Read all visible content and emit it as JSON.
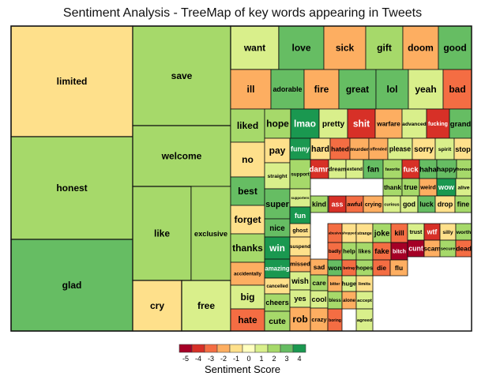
{
  "chart_data": {
    "type": "treemap",
    "title": "Sentiment Analysis - TreeMap of key words appearing in Tweets",
    "legend_title": "Sentiment Score",
    "legend_ticks": [
      "-5",
      "-4",
      "-3",
      "-2",
      "-1",
      "0",
      "1",
      "2",
      "3",
      "4"
    ],
    "palette": [
      "#a50026",
      "#d73027",
      "#f46d43",
      "#fdae61",
      "#fee08b",
      "#ffffbf",
      "#d9ef8b",
      "#a6d96a",
      "#66bd63",
      "#1a9850"
    ],
    "words": [
      {
        "word": "limited",
        "score": -1
      },
      {
        "word": "honest",
        "score": 2
      },
      {
        "word": "glad",
        "score": 3
      },
      {
        "word": "save",
        "score": 2
      },
      {
        "word": "welcome",
        "score": 2
      },
      {
        "word": "like",
        "score": 2
      },
      {
        "word": "exclusive",
        "score": 2
      },
      {
        "word": "cry",
        "score": -1
      },
      {
        "word": "free",
        "score": 1
      },
      {
        "word": "want",
        "score": 1
      },
      {
        "word": "love",
        "score": 3
      },
      {
        "word": "sick",
        "score": -2
      },
      {
        "word": "gift",
        "score": 2
      },
      {
        "word": "doom",
        "score": -2
      },
      {
        "word": "good",
        "score": 3
      },
      {
        "word": "ill",
        "score": -2
      },
      {
        "word": "adorable",
        "score": 3
      },
      {
        "word": "fire",
        "score": -2
      },
      {
        "word": "great",
        "score": 3
      },
      {
        "word": "lol",
        "score": 3
      },
      {
        "word": "yeah",
        "score": 1
      },
      {
        "word": "bad",
        "score": -3
      },
      {
        "word": "liked",
        "score": 2
      },
      {
        "word": "hope",
        "score": 2
      },
      {
        "word": "lmao",
        "score": 4
      },
      {
        "word": "pretty",
        "score": 1
      },
      {
        "word": "shit",
        "score": -4
      },
      {
        "word": "warfare",
        "score": -2
      },
      {
        "word": "advanced",
        "score": 1
      },
      {
        "word": "fucking",
        "score": -4
      },
      {
        "word": "grand",
        "score": 3
      },
      {
        "word": "no",
        "score": -1
      },
      {
        "word": "best",
        "score": 3
      },
      {
        "word": "forget",
        "score": -1
      },
      {
        "word": "thanks",
        "score": 2
      },
      {
        "word": "accidentally",
        "score": -2
      },
      {
        "word": "big",
        "score": 1
      },
      {
        "word": "hate",
        "score": -3
      },
      {
        "word": "pay",
        "score": -1
      },
      {
        "word": "straight",
        "score": 1
      },
      {
        "word": "super",
        "score": 3
      },
      {
        "word": "nice",
        "score": 3
      },
      {
        "word": "win",
        "score": 4
      },
      {
        "word": "amazing",
        "score": 4
      },
      {
        "word": "cancelled",
        "score": -1
      },
      {
        "word": "cheers",
        "score": 2
      },
      {
        "word": "cute",
        "score": 2
      },
      {
        "word": "funny",
        "score": 4
      },
      {
        "word": "hard",
        "score": -1
      },
      {
        "word": "hated",
        "score": -3
      },
      {
        "word": "murder",
        "score": -2
      },
      {
        "word": "offended",
        "score": -2
      },
      {
        "word": "please",
        "score": 1
      },
      {
        "word": "sorry",
        "score": -1
      },
      {
        "word": "spirit",
        "score": 1
      },
      {
        "word": "stop",
        "score": -1
      },
      {
        "word": "support",
        "score": 2
      },
      {
        "word": "damn",
        "score": -4
      },
      {
        "word": "dream",
        "score": 1
      },
      {
        "word": "extend",
        "score": 1
      },
      {
        "word": "fan",
        "score": 3
      },
      {
        "word": "favorite",
        "score": 2
      },
      {
        "word": "fuck",
        "score": -4
      },
      {
        "word": "haha",
        "score": 3
      },
      {
        "word": "happy",
        "score": 3
      },
      {
        "word": "honour",
        "score": 2
      },
      {
        "word": "thank",
        "score": 2
      },
      {
        "word": "true",
        "score": 2
      },
      {
        "word": "weird",
        "score": -2
      },
      {
        "word": "wow",
        "score": 4
      },
      {
        "word": "alive",
        "score": 1
      },
      {
        "word": "supporters",
        "score": 1
      },
      {
        "word": "hopefully",
        "score": 2
      },
      {
        "word": "kind",
        "score": 2
      },
      {
        "word": "ass",
        "score": -4
      },
      {
        "word": "awful",
        "score": -3
      },
      {
        "word": "crying",
        "score": -2
      },
      {
        "word": "curious",
        "score": 1
      },
      {
        "word": "god",
        "score": 1
      },
      {
        "word": "luck",
        "score": 3
      },
      {
        "word": "drop",
        "score": -1
      },
      {
        "word": "fine",
        "score": 2
      },
      {
        "word": "fun",
        "score": 4
      },
      {
        "word": "ghost",
        "score": -1
      },
      {
        "word": "suspend",
        "score": -1
      },
      {
        "word": "missed",
        "score": -2
      },
      {
        "word": "wish",
        "score": 1
      },
      {
        "word": "yes",
        "score": 1
      },
      {
        "word": "rob",
        "score": -2
      },
      {
        "word": "sad",
        "score": -2
      },
      {
        "word": "care",
        "score": 2
      },
      {
        "word": "cool",
        "score": 1
      },
      {
        "word": "crazy",
        "score": -2
      },
      {
        "word": "abusive",
        "score": -3
      },
      {
        "word": "shopped",
        "score": -1
      },
      {
        "word": "strange",
        "score": -1
      },
      {
        "word": "badly",
        "score": -3
      },
      {
        "word": "help",
        "score": 2
      },
      {
        "word": "won",
        "score": 3
      },
      {
        "word": "betray",
        "score": -3
      },
      {
        "word": "hopes",
        "score": 2
      },
      {
        "word": "bitter",
        "score": -2
      },
      {
        "word": "huge",
        "score": 1
      },
      {
        "word": "bless",
        "score": 2
      },
      {
        "word": "alone",
        "score": -2
      },
      {
        "word": "boring",
        "score": -3
      },
      {
        "word": "likes",
        "score": 2
      },
      {
        "word": "limits",
        "score": -1
      },
      {
        "word": "accept",
        "score": 1
      },
      {
        "word": "agreed",
        "score": 1
      },
      {
        "word": "joke",
        "score": 2
      },
      {
        "word": "fake",
        "score": -3
      },
      {
        "word": "kill",
        "score": -3
      },
      {
        "word": "bitch",
        "score": -5
      },
      {
        "word": "die",
        "score": -3
      },
      {
        "word": "flu",
        "score": -2
      },
      {
        "word": "trust",
        "score": 1
      },
      {
        "word": "wtf",
        "score": -4
      },
      {
        "word": "silly",
        "score": -1
      },
      {
        "word": "worth",
        "score": 2
      },
      {
        "word": "cunt",
        "score": -5
      },
      {
        "word": "scam",
        "score": -2
      },
      {
        "word": "secure",
        "score": 2
      },
      {
        "word": "dead",
        "score": -3
      }
    ]
  }
}
